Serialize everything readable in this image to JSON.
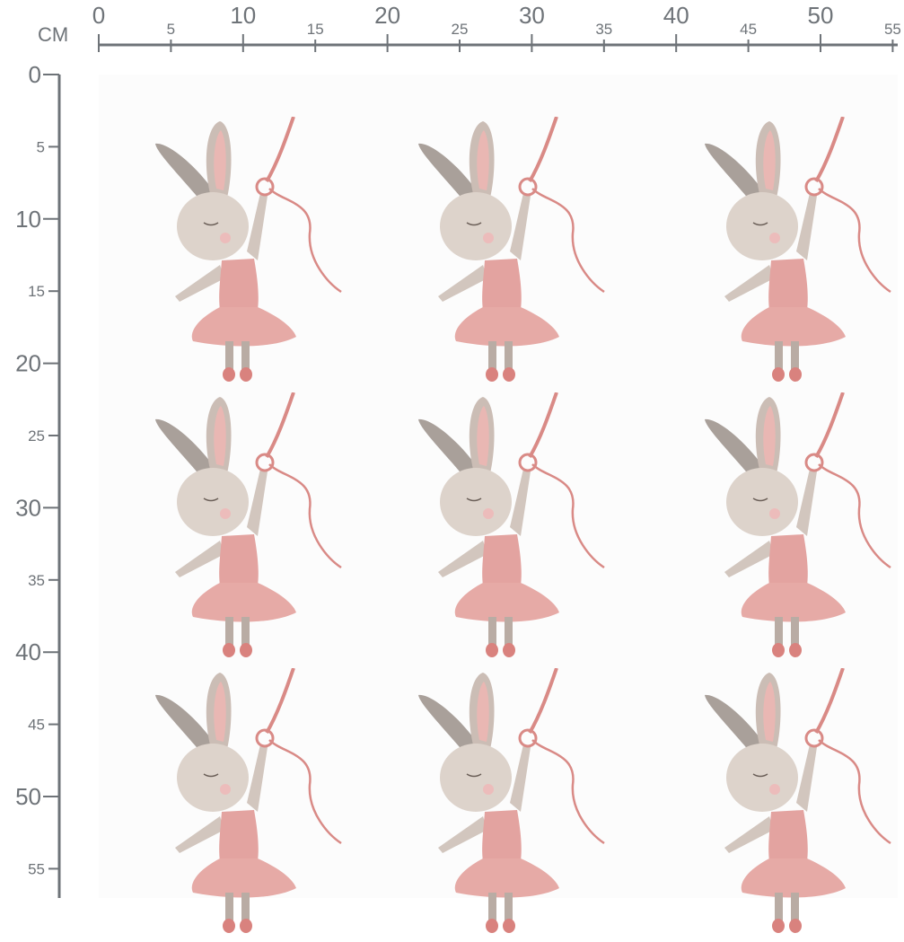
{
  "ruler": {
    "unit_label": "CM",
    "horizontal_ticks": [
      "0",
      "5",
      "10",
      "15",
      "20",
      "25",
      "30",
      "35",
      "40",
      "45",
      "50",
      "55"
    ],
    "vertical_ticks": [
      "0",
      "5",
      "10",
      "15",
      "20",
      "25",
      "30",
      "35",
      "40",
      "45",
      "50",
      "55"
    ],
    "color": "#6e7378"
  },
  "pattern": {
    "motif": "ballerina-bunny-with-ribbon",
    "rows": 3,
    "columns": 3,
    "colors": {
      "dress": "#e3a3a0",
      "fur": "#d8cfc8",
      "ear": "#8a7f78",
      "ribbon": "#d98a86"
    }
  }
}
